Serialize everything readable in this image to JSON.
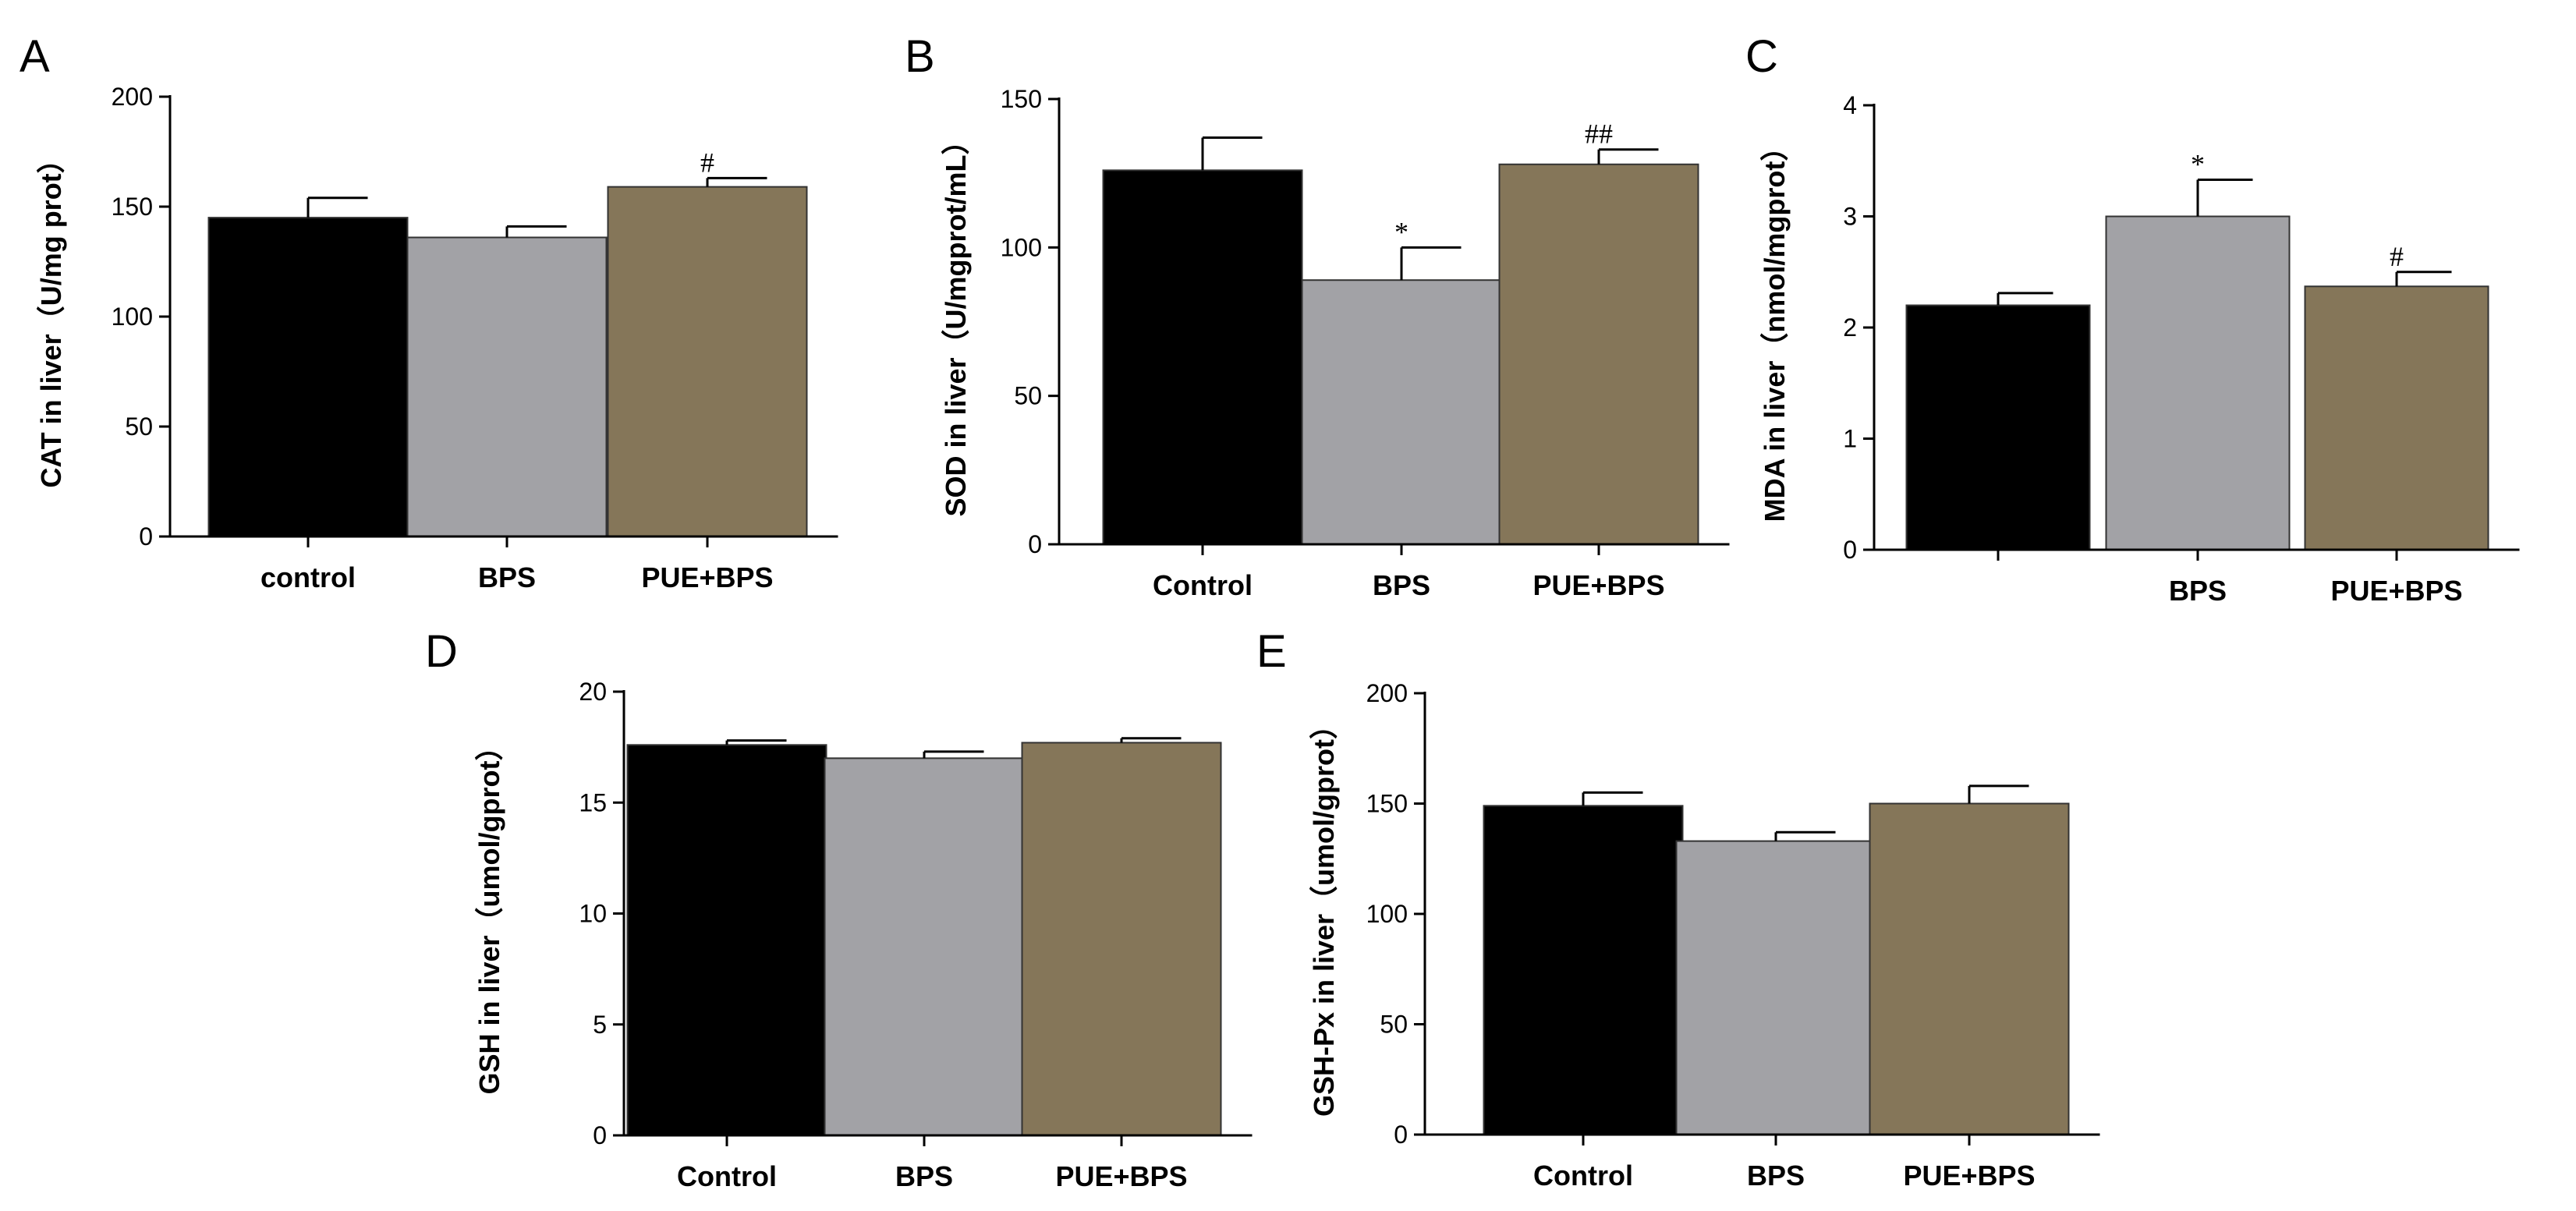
{
  "colors": {
    "control": "#000000",
    "bps": "#a2a2a6",
    "pue_bps": "#857659",
    "edge": "#333333"
  },
  "chart_data": [
    {
      "panel": "A",
      "type": "bar",
      "ylabel": "CAT in liver（U/mg prot）",
      "categories": [
        "control",
        "BPS",
        "PUE+BPS"
      ],
      "values": [
        145,
        136,
        159
      ],
      "errors": [
        9,
        5,
        4
      ],
      "annotations": [
        "",
        "",
        "#"
      ],
      "ylim": [
        0,
        200
      ],
      "yticks": [
        0,
        50,
        100,
        150,
        200
      ]
    },
    {
      "panel": "B",
      "type": "bar",
      "ylabel": "SOD in liver（U/mgprot/mL）",
      "categories": [
        "Control",
        "BPS",
        "PUE+BPS"
      ],
      "values": [
        126,
        89,
        128
      ],
      "errors": [
        11,
        11,
        5
      ],
      "annotations": [
        "",
        "*",
        "##"
      ],
      "ylim": [
        0,
        150
      ],
      "yticks": [
        0,
        50,
        100,
        150
      ]
    },
    {
      "panel": "C",
      "type": "bar",
      "ylabel": "MDA in liver（nmol/mgprot）",
      "categories": [
        "",
        "BPS",
        "PUE+BPS"
      ],
      "values": [
        2.2,
        3.0,
        2.37
      ],
      "errors": [
        0.11,
        0.33,
        0.13
      ],
      "annotations": [
        "",
        "*",
        "#"
      ],
      "ylim": [
        0,
        4
      ],
      "yticks": [
        0,
        1,
        2,
        3,
        4
      ]
    },
    {
      "panel": "D",
      "type": "bar",
      "ylabel": "GSH in liver（umol/gprot）",
      "categories": [
        "Control",
        "BPS",
        "PUE+BPS"
      ],
      "values": [
        17.6,
        17.0,
        17.7
      ],
      "errors": [
        0.2,
        0.3,
        0.2
      ],
      "annotations": [
        "",
        "",
        ""
      ],
      "ylim": [
        0,
        20
      ],
      "yticks": [
        0,
        5,
        10,
        15,
        20
      ]
    },
    {
      "panel": "E",
      "type": "bar",
      "ylabel": "GSH-Px  in liver（umol/gprot）",
      "categories": [
        "Control",
        "BPS",
        "PUE+BPS"
      ],
      "values": [
        149,
        133,
        150
      ],
      "errors": [
        6,
        4,
        8
      ],
      "annotations": [
        "",
        "",
        ""
      ],
      "ylim": [
        0,
        200
      ],
      "yticks": [
        0,
        50,
        100,
        150,
        200
      ]
    }
  ]
}
